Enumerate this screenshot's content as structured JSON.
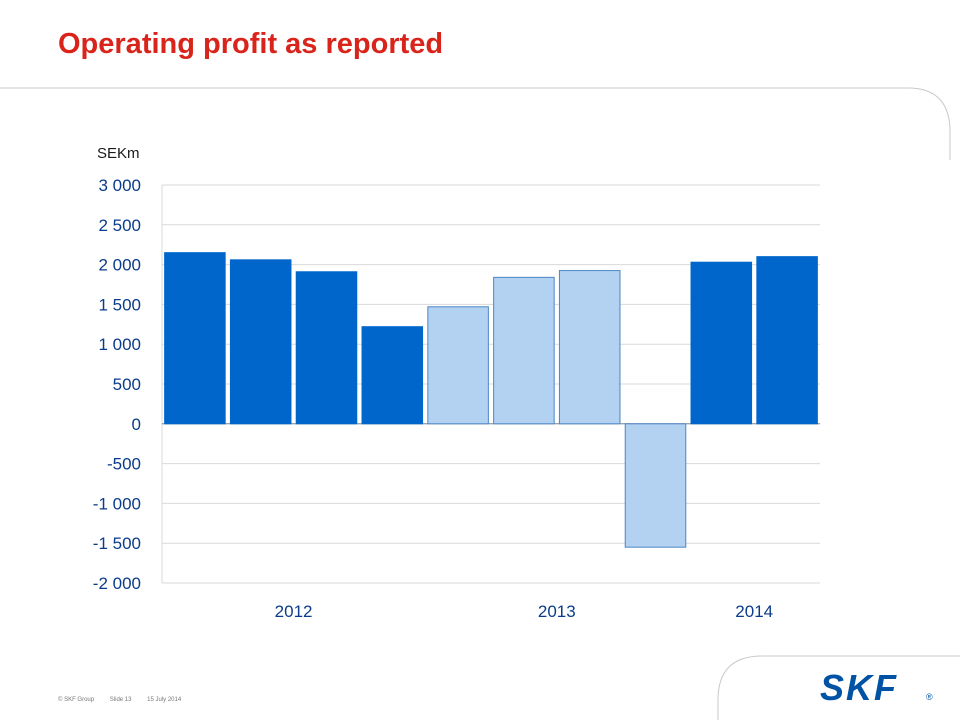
{
  "slide": {
    "title": "Operating profit as reported",
    "footer": {
      "copyright": "© SKF Group",
      "slide_number": "Slide 13",
      "date": "15 July 2014"
    },
    "logo_text": "SKF",
    "colors": {
      "title": "#d9241b",
      "bar_dark": "#0066cc",
      "bar_light": "#b3d1f0",
      "bar_light_border": "#4a86c8",
      "axis_text": "#0b3c8a",
      "logo": "#0052a5"
    }
  },
  "chart_data": {
    "type": "bar",
    "title": "",
    "ylabel": "SEKm",
    "xlabel": "",
    "ylim": [
      -2000,
      3000
    ],
    "yticks": [
      3000,
      2500,
      2000,
      1500,
      1000,
      500,
      0,
      -500,
      -1000,
      -1500,
      -2000
    ],
    "ytick_labels": [
      "3 000",
      "2 500",
      "2 000",
      "1 500",
      "1 000",
      "500",
      "0",
      "-500",
      "-1 000",
      "-1 500",
      "-2 000"
    ],
    "grid": true,
    "legend": "none",
    "bars": [
      {
        "value": 2150,
        "style": "dark"
      },
      {
        "value": 2060,
        "style": "dark"
      },
      {
        "value": 1910,
        "style": "dark"
      },
      {
        "value": 1220,
        "style": "dark"
      },
      {
        "value": 1470,
        "style": "light"
      },
      {
        "value": 1840,
        "style": "light"
      },
      {
        "value": 1925,
        "style": "light"
      },
      {
        "value": -1550,
        "style": "light"
      },
      {
        "value": 2030,
        "style": "dark"
      },
      {
        "value": 2100,
        "style": "dark"
      }
    ],
    "year_groups": [
      {
        "label": "2012",
        "bar_indices": [
          0,
          1,
          2,
          3
        ]
      },
      {
        "label": "2013",
        "bar_indices": [
          4,
          5,
          6,
          7
        ]
      },
      {
        "label": "2014",
        "bar_indices": [
          8,
          9
        ]
      }
    ]
  }
}
